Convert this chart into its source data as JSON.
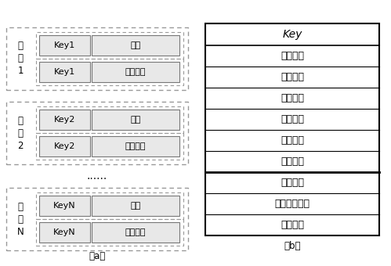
{
  "groups": [
    {
      "label": "瓦\n片\n1",
      "row1": [
        "Key1",
        "索引"
      ],
      "row2": [
        "Key1",
        "瓦片数据"
      ]
    },
    {
      "label": "瓦\n片\n2",
      "row1": [
        "Key2",
        "索引"
      ],
      "row2": [
        "Key2",
        "瓦片数据"
      ]
    },
    {
      "label": "瓦\n片\nN",
      "row1": [
        "KeyN",
        "索引"
      ],
      "row2": [
        "KeyN",
        "瓦片数据"
      ]
    }
  ],
  "dots": "......",
  "caption_a": "（a）",
  "caption_b": "（b）",
  "right_header": "Key",
  "right_rows": [
    "偏移地址",
    "数据大小",
    "数据类型",
    "压缩方式",
    "加密方式",
    "存储时间",
    "地理范围",
    "最后访问时间",
    "访问次数"
  ],
  "thick_line_after_row": 6,
  "bg_color": "#ffffff"
}
